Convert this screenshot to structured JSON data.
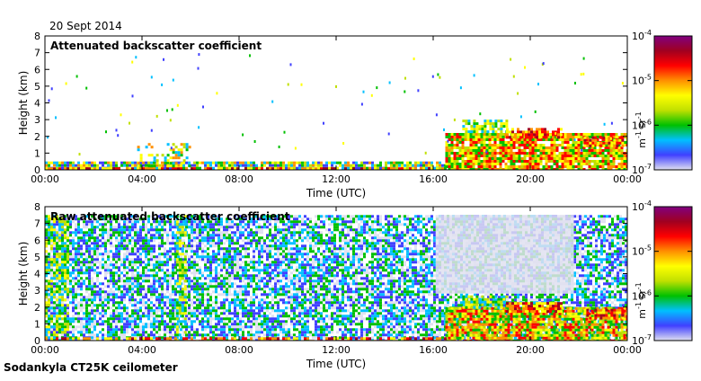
{
  "header": {
    "date": "20 Sept 2014"
  },
  "footer": {
    "instrument": "Sodankyla CT25K ceilometer"
  },
  "colorbar": {
    "tick_labels": [
      {
        "mantissa": "10",
        "exponent": "-4"
      },
      {
        "mantissa": "10",
        "exponent": "-5"
      },
      {
        "mantissa": "10",
        "exponent": "-6"
      },
      {
        "mantissa": "10",
        "exponent": "-7"
      }
    ],
    "unit": {
      "m": "m",
      "m_exp": "-1",
      "sr": "sr",
      "sr_exp": "-1"
    },
    "colors": [
      "#e0e0f0",
      "#4040ff",
      "#00c0ff",
      "#00c000",
      "#c0e000",
      "#ffff00",
      "#ff9000",
      "#ff0000",
      "#a00020",
      "#800080"
    ]
  },
  "chart_data": [
    {
      "type": "heatmap",
      "title": "Attenuated backscatter coefficient",
      "xlabel": "Time (UTC)",
      "ylabel": "Height (km)",
      "x_tick_labels": [
        "00:00",
        "04:00",
        "08:00",
        "12:00",
        "16:00",
        "20:00",
        "00:00"
      ],
      "y_tick_labels": [
        "0",
        "1",
        "2",
        "3",
        "4",
        "5",
        "6",
        "7",
        "8"
      ],
      "xlim_hours": [
        0,
        24
      ],
      "ylim_km": [
        0,
        8
      ],
      "color_scale": "log",
      "clim": [
        1e-07,
        0.0001
      ],
      "features": [
        {
          "name": "boundary-layer",
          "time_range_h": [
            0,
            16.5
          ],
          "height_km": [
            0,
            0.5
          ]
        },
        {
          "name": "cloud-1",
          "time_range_h": [
            17.2,
            19.0
          ],
          "height_km": [
            2.2,
            3.0
          ]
        },
        {
          "name": "cloud-2",
          "time_range_h": [
            19.0,
            21.3
          ],
          "height_km": [
            2.0,
            2.5
          ]
        },
        {
          "name": "cloud-3",
          "time_range_h": [
            22.2,
            23.8
          ],
          "height_km": [
            1.5,
            2.0
          ]
        }
      ]
    },
    {
      "type": "heatmap",
      "title": "Raw attenuated backscatter coefficient",
      "xlabel": "Time (UTC)",
      "ylabel": "Height (km)",
      "x_tick_labels": [
        "00:00",
        "04:00",
        "08:00",
        "12:00",
        "16:00",
        "20:00",
        "00:00"
      ],
      "y_tick_labels": [
        "0",
        "1",
        "2",
        "3",
        "4",
        "5",
        "6",
        "7",
        "8"
      ],
      "xlim_hours": [
        0,
        24
      ],
      "ylim_km": [
        0,
        8
      ],
      "color_scale": "log",
      "clim": [
        1e-07,
        0.0001
      ],
      "features": [
        {
          "name": "noise-field",
          "time_range_h": [
            0,
            24
          ],
          "height_km": [
            0,
            7.5
          ]
        },
        {
          "name": "clear-gap",
          "time_range_h": [
            16.1,
            21.8
          ],
          "height_km": [
            2.8,
            7.5
          ]
        },
        {
          "name": "cloud-1",
          "time_range_h": [
            17.2,
            19.0
          ],
          "height_km": [
            2.0,
            2.7
          ]
        },
        {
          "name": "cloud-2",
          "time_range_h": [
            19.0,
            21.3
          ],
          "height_km": [
            1.8,
            2.3
          ]
        },
        {
          "name": "cloud-3",
          "time_range_h": [
            22.2,
            23.8
          ],
          "height_km": [
            1.4,
            1.9
          ]
        }
      ]
    }
  ]
}
